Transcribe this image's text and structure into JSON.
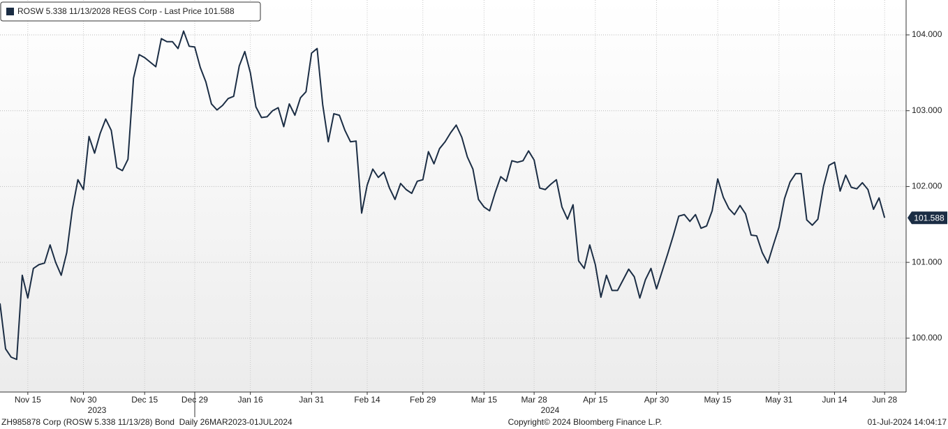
{
  "chart_data": {
    "type": "line",
    "series": [
      {
        "name": "ROSW 5.338 11/13/2028 REGS Corp - Last Price 101.588",
        "color": "#1b2d44",
        "values": [
          100.46,
          99.86,
          99.75,
          99.72,
          100.83,
          100.53,
          100.92,
          100.97,
          100.99,
          101.23,
          101.0,
          100.83,
          101.13,
          101.7,
          102.09,
          101.96,
          102.66,
          102.44,
          102.7,
          102.89,
          102.74,
          102.25,
          102.21,
          102.36,
          103.43,
          103.74,
          103.7,
          103.64,
          103.58,
          103.95,
          103.91,
          103.91,
          103.82,
          104.05,
          103.85,
          103.84,
          103.57,
          103.38,
          103.09,
          103.01,
          103.07,
          103.16,
          103.19,
          103.59,
          103.78,
          103.5,
          103.05,
          102.91,
          102.92,
          103.0,
          103.04,
          102.79,
          103.09,
          102.94,
          103.17,
          103.25,
          103.76,
          103.82,
          103.08,
          102.59,
          102.96,
          102.94,
          102.74,
          102.59,
          102.6,
          101.65,
          102.02,
          102.23,
          102.12,
          102.19,
          101.98,
          101.83,
          102.04,
          101.96,
          101.91,
          102.07,
          102.09,
          102.46,
          102.3,
          102.5,
          102.59,
          102.71,
          102.81,
          102.65,
          102.39,
          102.23,
          101.83,
          101.73,
          101.68,
          101.92,
          102.13,
          102.07,
          102.34,
          102.32,
          102.34,
          102.47,
          102.35,
          101.98,
          101.96,
          102.03,
          102.09,
          101.73,
          101.57,
          101.76,
          101.02,
          100.92,
          101.23,
          100.97,
          100.54,
          100.83,
          100.63,
          100.63,
          100.77,
          100.91,
          100.81,
          100.53,
          100.77,
          100.92,
          100.65,
          100.88,
          101.11,
          101.35,
          101.61,
          101.63,
          101.54,
          101.63,
          101.45,
          101.48,
          101.68,
          102.1,
          101.86,
          101.71,
          101.63,
          101.75,
          101.64,
          101.36,
          101.35,
          101.13,
          100.99,
          101.23,
          101.46,
          101.84,
          102.06,
          102.17,
          102.17,
          101.56,
          101.49,
          101.57,
          102.0,
          102.28,
          102.32,
          101.94,
          102.15,
          101.99,
          101.97,
          102.05,
          101.96,
          101.7,
          101.85,
          101.588
        ]
      }
    ],
    "categories": [
      null,
      null,
      null,
      null,
      null,
      "Nov 15",
      null,
      null,
      null,
      null,
      null,
      null,
      null,
      null,
      null,
      "Nov 30",
      null,
      null,
      null,
      null,
      null,
      null,
      null,
      null,
      null,
      null,
      "Dec 15",
      null,
      null,
      null,
      null,
      null,
      null,
      null,
      null,
      "Dec 29",
      null,
      null,
      null,
      null,
      null,
      null,
      null,
      null,
      null,
      "Jan 16",
      null,
      null,
      null,
      null,
      null,
      null,
      null,
      null,
      null,
      null,
      "Jan 31",
      null,
      null,
      null,
      null,
      null,
      null,
      null,
      null,
      null,
      "Feb 14",
      null,
      null,
      null,
      null,
      null,
      null,
      null,
      null,
      null,
      "Feb 29",
      null,
      null,
      null,
      null,
      null,
      null,
      null,
      null,
      null,
      null,
      "Mar 15",
      null,
      null,
      null,
      null,
      null,
      null,
      null,
      null,
      "Mar 28",
      null,
      null,
      null,
      null,
      null,
      null,
      null,
      null,
      null,
      null,
      "Apr 15",
      null,
      null,
      null,
      null,
      null,
      null,
      null,
      null,
      null,
      null,
      "Apr 30",
      null,
      null,
      null,
      null,
      null,
      null,
      null,
      null,
      null,
      null,
      "May 15",
      null,
      null,
      null,
      null,
      null,
      null,
      null,
      null,
      null,
      null,
      "May 31",
      null,
      null,
      null,
      null,
      null,
      null,
      null,
      null,
      null,
      "Jun 14",
      null,
      null,
      null,
      null,
      null,
      null,
      null,
      null,
      "Jun 28"
    ],
    "years": [
      "2023",
      "2024"
    ],
    "ylim": [
      99.29,
      104.46
    ],
    "yticks": [
      {
        "value": 100,
        "label": "100.000"
      },
      {
        "value": 101,
        "label": "101.000"
      },
      {
        "value": 102,
        "label": "102.000"
      },
      {
        "value": 103,
        "label": "103.000"
      },
      {
        "value": 104,
        "label": "104.000"
      }
    ],
    "grid": true,
    "legend": "upper left",
    "footer": {
      "left": "ZH985878 Corp (ROSW 5.338 11/13/28) Bond  Daily 26MAR2023-01JUL2024",
      "center": "Copyright© 2024 Bloomberg Finance L.P.",
      "right": "01-Jul-2024 14:04:17"
    }
  }
}
